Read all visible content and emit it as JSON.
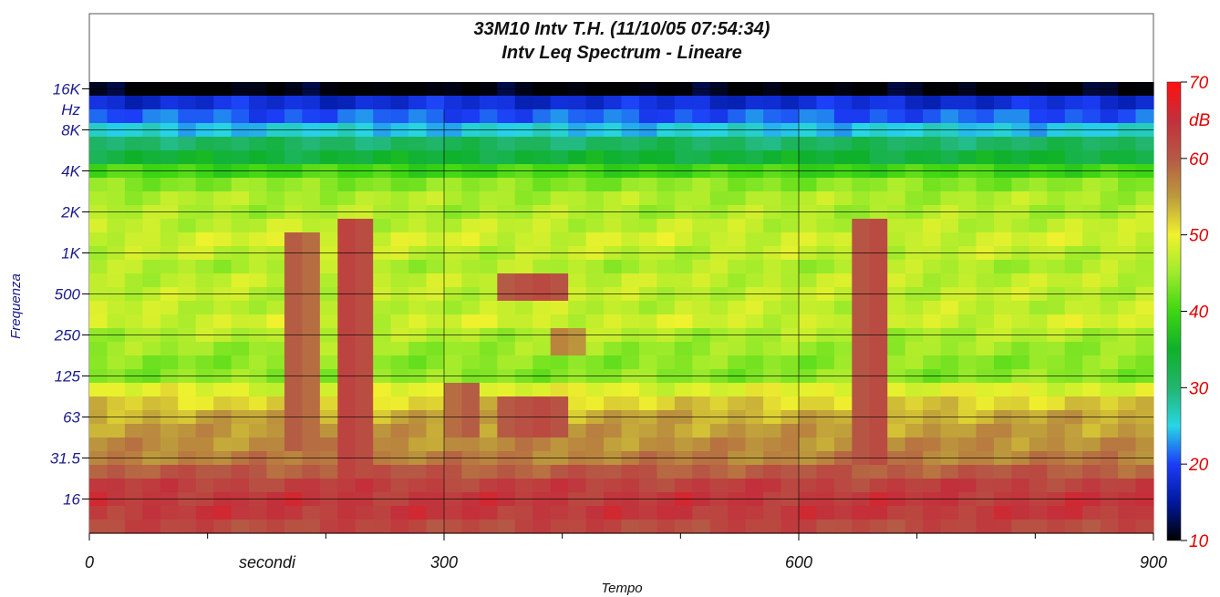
{
  "chart_data": {
    "type": "heatmap",
    "title_line1": "33M10 Intv T.H. (11/10/05 07:54:34)",
    "title_line2": "Intv Leq Spectrum - Lineare",
    "xlabel": "Tempo",
    "xlabel_unit": "secondi",
    "ylabel": "Frequenza",
    "y_unit": "Hz",
    "xlim": [
      0,
      900
    ],
    "x_ticks": [
      {
        "value": 0,
        "label": "0"
      },
      {
        "value": 300,
        "label": "300"
      },
      {
        "value": 600,
        "label": "600"
      },
      {
        "value": 900,
        "label": "900"
      }
    ],
    "x_minor_ticks": [
      100,
      200,
      400,
      500,
      700,
      800
    ],
    "y_scale": "log2-octave",
    "y_ticks": [
      "16K",
      "8K",
      "4K",
      "2K",
      "1K",
      "500",
      "250",
      "125",
      "63",
      "31.5",
      "16"
    ],
    "colorbar": {
      "unit": "dB",
      "min": 10,
      "max": 70,
      "ticks": [
        70,
        60,
        50,
        40,
        30,
        20,
        10
      ],
      "colors": [
        "#000000",
        "#00189e",
        "#1c3df7",
        "#27d6e6",
        "#22b56e",
        "#0fb12a",
        "#3ed613",
        "#9deb2b",
        "#f0f22e",
        "#bc9a3c",
        "#b55945",
        "#c2303b",
        "#ff1010"
      ]
    },
    "frequency_bands": [
      "16K",
      "12.5K",
      "10K",
      "8K",
      "6.3K",
      "5K",
      "4K",
      "3.15K",
      "2.5K",
      "2K",
      "1.6K",
      "1.25K",
      "1K",
      "800",
      "630",
      "500",
      "400",
      "315",
      "250",
      "200",
      "160",
      "125",
      "100",
      "80",
      "63",
      "50",
      "40",
      "31.5",
      "25",
      "20",
      "16",
      "12.5",
      "10"
    ],
    "band_levels_db": [
      10,
      18,
      21,
      25,
      31,
      34,
      40,
      44,
      46,
      46,
      47,
      48,
      47,
      46,
      47,
      47,
      47,
      48,
      46,
      45,
      44,
      44,
      49,
      52,
      54,
      55,
      56,
      57,
      60,
      63,
      64,
      64,
      62
    ],
    "time_step_s": 15,
    "time_points_s": [
      0,
      15,
      30,
      45,
      60,
      75,
      90,
      105,
      120,
      135,
      150,
      165,
      180,
      195,
      210,
      225,
      240,
      255,
      270,
      285,
      300,
      315,
      330,
      345,
      360,
      375,
      390,
      405,
      420,
      435,
      450,
      465,
      480,
      495,
      510,
      525,
      540,
      555,
      570,
      585,
      600,
      615,
      630,
      645,
      660,
      675,
      690,
      705,
      720,
      735,
      750,
      765,
      780,
      795,
      810,
      825,
      840,
      855,
      870,
      885
    ],
    "events": [
      {
        "time_s": 175,
        "width_s": 30,
        "bands": [
          "1.25K",
          "1K",
          "800",
          "630",
          "500",
          "400",
          "315",
          "250",
          "200",
          "160",
          "125",
          "100",
          "80",
          "63",
          "50",
          "40"
        ],
        "peak_db": 60
      },
      {
        "time_s": 220,
        "width_s": 30,
        "bands": [
          "1.6K",
          "1.25K",
          "1K",
          "800",
          "630",
          "500",
          "400",
          "315",
          "250",
          "200",
          "160",
          "125",
          "100",
          "80",
          "63",
          "50",
          "40",
          "31.5",
          "25",
          "20",
          "16",
          "12.5"
        ],
        "peak_db": 63
      },
      {
        "time_s": 320,
        "width_s": 30,
        "bands": [
          "100",
          "80",
          "63",
          "50"
        ],
        "peak_db": 60
      },
      {
        "time_s": 380,
        "width_s": 60,
        "bands": [
          "630",
          "500",
          "80",
          "63",
          "50"
        ],
        "peak_db": 62
      },
      {
        "time_s": 400,
        "width_s": 30,
        "bands": [
          "250",
          "200"
        ],
        "peak_db": 57
      },
      {
        "time_s": 665,
        "width_s": 30,
        "bands": [
          "1.6K",
          "1.25K",
          "1K",
          "800",
          "630",
          "500",
          "400",
          "315",
          "250",
          "200",
          "160",
          "125",
          "100",
          "80",
          "63",
          "50",
          "40",
          "31.5"
        ],
        "peak_db": 62
      }
    ]
  }
}
